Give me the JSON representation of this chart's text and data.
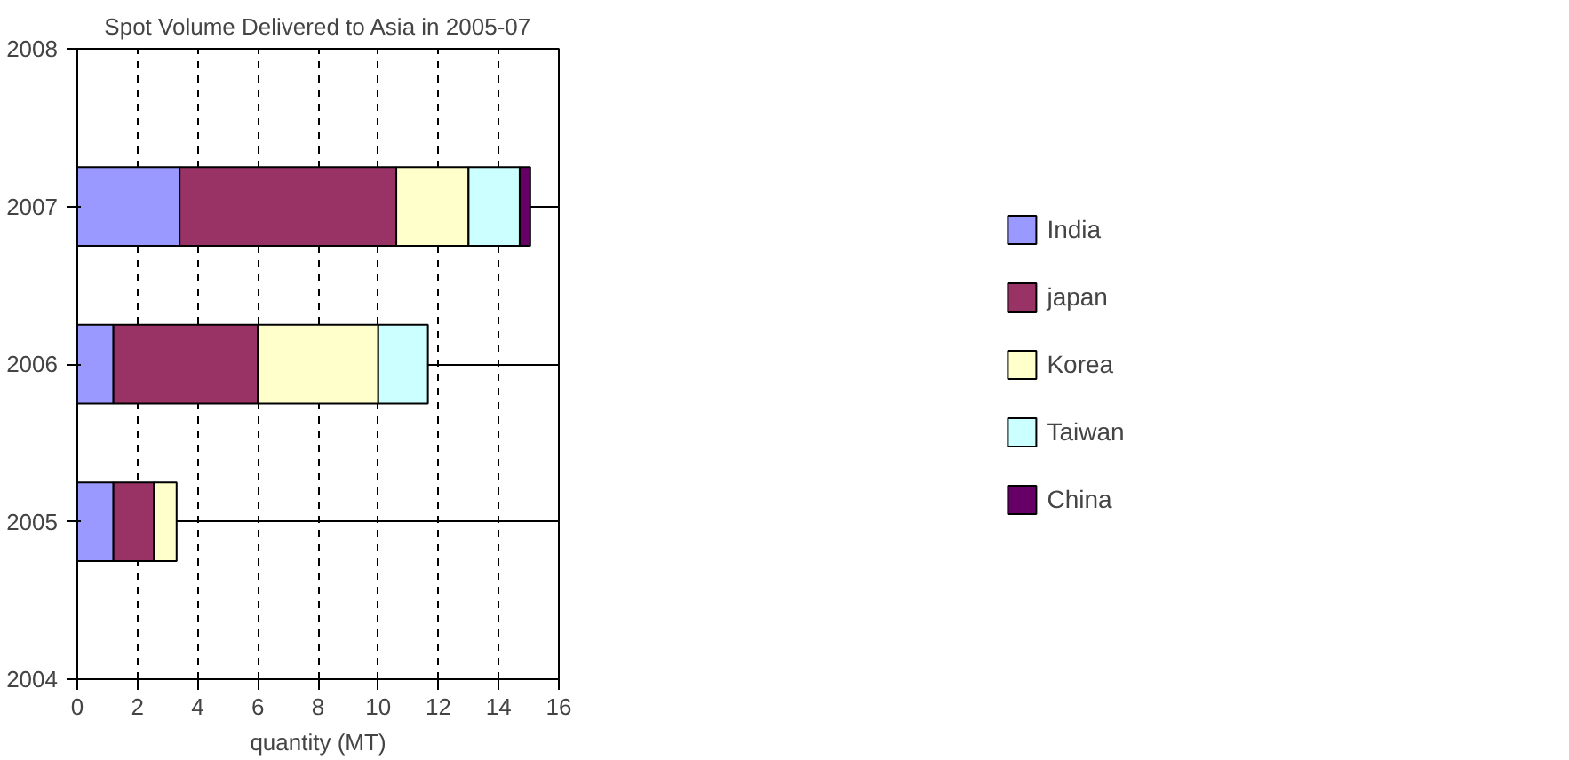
{
  "chart_data": {
    "type": "bar",
    "orientation": "horizontal",
    "stacked": true,
    "title": "Spot Volume Delivered to Asia in 2005-07",
    "xlabel": "quantity (MT)",
    "categories": [
      "2008",
      "2007",
      "2006",
      "2005",
      "2004"
    ],
    "series": [
      {
        "name": "India",
        "color": "#9999ff",
        "values": [
          null,
          3.4,
          1.2,
          1.2,
          null
        ]
      },
      {
        "name": "japan",
        "color": "#993366",
        "values": [
          null,
          7.2,
          4.8,
          1.35,
          null
        ]
      },
      {
        "name": "Korea",
        "color": "#ffffcc",
        "values": [
          null,
          2.4,
          4.0,
          0.75,
          null
        ]
      },
      {
        "name": "Taiwan",
        "color": "#ccffff",
        "values": [
          null,
          1.7,
          1.65,
          null,
          null
        ]
      },
      {
        "name": "China",
        "color": "#660066",
        "values": [
          null,
          0.35,
          null,
          null,
          null
        ]
      }
    ],
    "xlim": [
      0,
      16
    ],
    "xticks": [
      0,
      2,
      4,
      6,
      8,
      10,
      12,
      14,
      16
    ],
    "grid": true,
    "legend": "right"
  }
}
